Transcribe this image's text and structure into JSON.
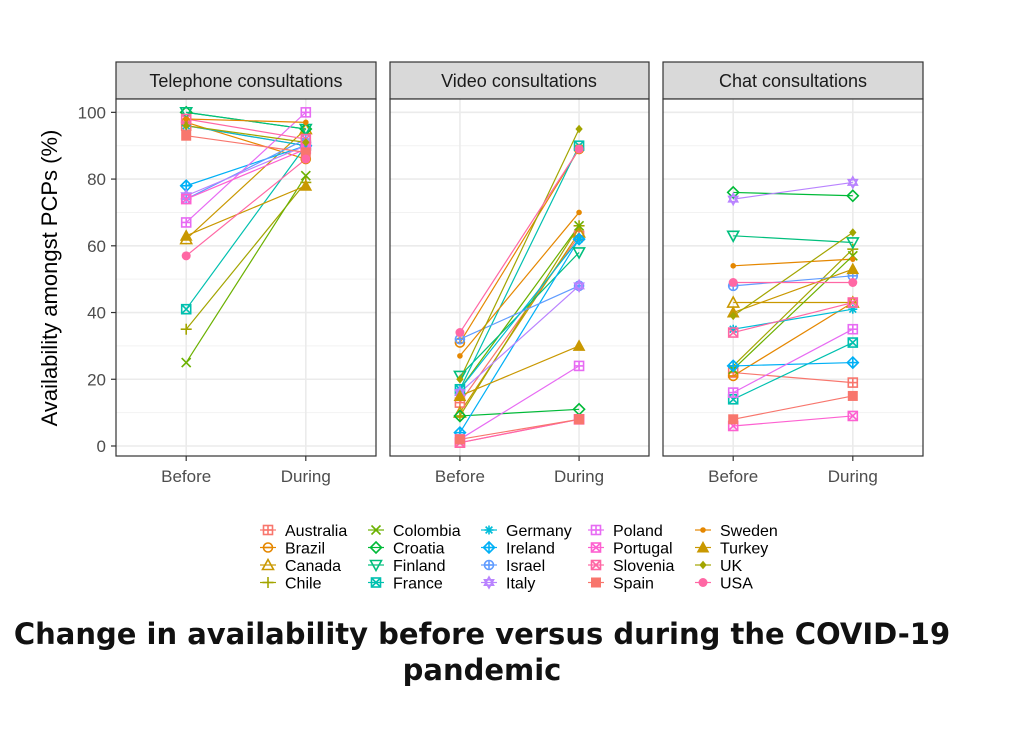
{
  "caption": "Change in availability before versus during the COVID-19 pandemic",
  "chart_data": {
    "type": "line",
    "facets": [
      "Telephone consultations",
      "Video consultations",
      "Chat consultations"
    ],
    "categories": [
      "Before",
      "During"
    ],
    "ylabel": "Availability amongst PCPs (%)",
    "ylim": [
      -3,
      104
    ],
    "yticks": [
      0,
      20,
      40,
      60,
      80,
      100
    ],
    "legend_position": "bottom",
    "series": [
      {
        "name": "Australia",
        "color": "#F8766D",
        "shape": "square-cross",
        "telephone": [
          96,
          90
        ],
        "video": [
          13,
          63
        ],
        "chat": [
          22,
          19
        ]
      },
      {
        "name": "Brazil",
        "color": "#E58700",
        "shape": "circle-minus",
        "telephone": [
          97,
          86
        ],
        "video": [
          31,
          89
        ],
        "chat": [
          21,
          43
        ]
      },
      {
        "name": "Canada",
        "color": "#C99800",
        "shape": "triangle",
        "telephone": [
          62,
          95
        ],
        "video": [
          10,
          64
        ],
        "chat": [
          43,
          43
        ]
      },
      {
        "name": "Chile",
        "color": "#A3A500",
        "shape": "plus",
        "telephone": [
          35,
          79
        ],
        "video": [
          9,
          66
        ],
        "chat": [
          24,
          59
        ]
      },
      {
        "name": "Colombia",
        "color": "#6BB100",
        "shape": "x",
        "telephone": [
          25,
          81
        ],
        "video": [
          17,
          66
        ],
        "chat": [
          23,
          57
        ]
      },
      {
        "name": "Croatia",
        "color": "#00BA38",
        "shape": "diamond",
        "telephone": [
          100,
          95
        ],
        "video": [
          9,
          11
        ],
        "chat": [
          76,
          75
        ]
      },
      {
        "name": "Finland",
        "color": "#00BF7D",
        "shape": "triangle-down",
        "telephone": [
          100,
          95
        ],
        "video": [
          21,
          58
        ],
        "chat": [
          63,
          61
        ]
      },
      {
        "name": "France",
        "color": "#00C0AF",
        "shape": "square-x",
        "telephone": [
          41,
          90
        ],
        "video": [
          17,
          90
        ],
        "chat": [
          14,
          31
        ]
      },
      {
        "name": "Germany",
        "color": "#00BCD8",
        "shape": "asterisk",
        "telephone": [
          96,
          90
        ],
        "video": [
          17,
          62
        ],
        "chat": [
          35,
          41
        ]
      },
      {
        "name": "Ireland",
        "color": "#00B0F6",
        "shape": "diamond-plus",
        "telephone": [
          78,
          90
        ],
        "video": [
          4,
          62
        ],
        "chat": [
          24,
          25
        ]
      },
      {
        "name": "Israel",
        "color": "#619CFF",
        "shape": "circle-plus",
        "telephone": [
          74,
          92
        ],
        "video": [
          32,
          48
        ],
        "chat": [
          48,
          51
        ]
      },
      {
        "name": "Italy",
        "color": "#B983FF",
        "shape": "star-david",
        "telephone": [
          75,
          90
        ],
        "video": [
          16,
          48
        ],
        "chat": [
          74,
          79
        ]
      },
      {
        "name": "Poland",
        "color": "#E76BF3",
        "shape": "square-plus",
        "telephone": [
          67,
          100
        ],
        "video": [
          2,
          24
        ],
        "chat": [
          16,
          35
        ]
      },
      {
        "name": "Portugal",
        "color": "#FD61D1",
        "shape": "square-x",
        "telephone": [
          74,
          89
        ],
        "video": [
          1,
          8
        ],
        "chat": [
          6,
          9
        ]
      },
      {
        "name": "Slovenia",
        "color": "#FF67A4",
        "shape": "square-x",
        "telephone": [
          98,
          92
        ],
        "video": [
          1,
          8
        ],
        "chat": [
          34,
          43
        ]
      },
      {
        "name": "Spain",
        "color": "#F8766D",
        "shape": "square",
        "telephone": [
          93,
          88
        ],
        "video": [
          2,
          8
        ],
        "chat": [
          8,
          15
        ]
      },
      {
        "name": "Sweden",
        "color": "#E58700",
        "shape": "circle-small",
        "telephone": [
          98,
          97
        ],
        "video": [
          27,
          70
        ],
        "chat": [
          54,
          56
        ]
      },
      {
        "name": "Turkey",
        "color": "#C99800",
        "shape": "triangle-filled",
        "telephone": [
          63,
          78
        ],
        "video": [
          15,
          30
        ],
        "chat": [
          40,
          53
        ]
      },
      {
        "name": "UK",
        "color": "#A3A500",
        "shape": "diamond-small",
        "telephone": [
          96,
          91
        ],
        "video": [
          20,
          95
        ],
        "chat": [
          39,
          64
        ]
      },
      {
        "name": "USA",
        "color": "#FF67A4",
        "shape": "circle",
        "telephone": [
          57,
          86
        ],
        "video": [
          34,
          89
        ],
        "chat": [
          49,
          49
        ]
      }
    ]
  }
}
